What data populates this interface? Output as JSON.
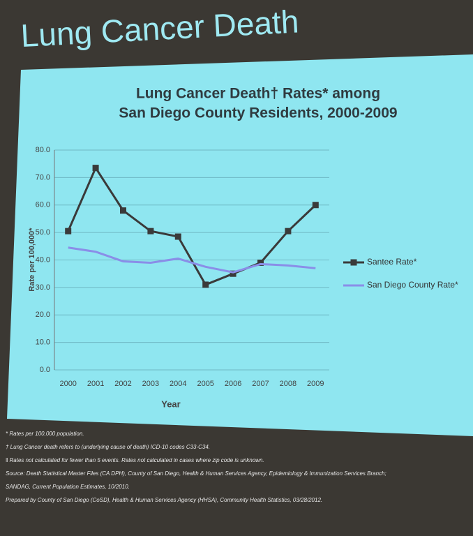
{
  "slide_title": "Lung Cancer Death",
  "chart_data": {
    "type": "line",
    "title": [
      "Lung Cancer Death†  Rates* among",
      "San Diego County Residents, 2000-2009"
    ],
    "x_label": "Year",
    "y_label": "Rate per 100,000*",
    "categories": [
      "2000",
      "2001",
      "2002",
      "2003",
      "2004",
      "2005",
      "2006",
      "2007",
      "2008",
      "2009"
    ],
    "series": [
      {
        "name": "Santee Rate*",
        "color": "#3a3a3a",
        "marker": "square",
        "values": [
          50.5,
          73.5,
          58,
          50.5,
          48.5,
          31,
          35,
          39,
          50.5,
          60
        ]
      },
      {
        "name": "San Diego County Rate*",
        "color": "#8a8ee8",
        "marker": "none",
        "values": [
          44.5,
          43,
          39.5,
          39,
          40.5,
          37.5,
          35.5,
          38.5,
          38,
          37
        ]
      }
    ],
    "ylim": [
      0,
      80
    ],
    "yticks": [
      {
        "value": 0,
        "label": "0.0"
      },
      {
        "value": 10,
        "label": "10.0"
      },
      {
        "value": 20,
        "label": "20.0"
      },
      {
        "value": 30,
        "label": "30.0"
      },
      {
        "value": 40,
        "label": "40.0"
      },
      {
        "value": 50,
        "label": "50.0"
      },
      {
        "value": 60,
        "label": "60.0"
      },
      {
        "value": 70,
        "label": "70.0"
      },
      {
        "value": 80,
        "label": "80.0"
      }
    ],
    "grid": true,
    "legend": "right"
  },
  "footnotes": [
    "* Rates per 100,000 population.",
    "† Lung Cancer death refers to (underlying cause of death) ICD-10 codes C33-C34.",
    "‖ Rates not calculated for fewer than 5 events.  Rates not calculated in cases where zip code is unknown.",
    "Source: Death Statistical Master Files (CA DPH), County of San Diego, Health & Human Services Agency, Epidemiology & Immunization Services Branch;",
    "SANDAG, Current Population Estimates, 10/2010.",
    "Prepared by County of San Diego (CoSD), Health & Human Services Agency (HHSA), Community Health Statistics, 03/28/2012."
  ]
}
